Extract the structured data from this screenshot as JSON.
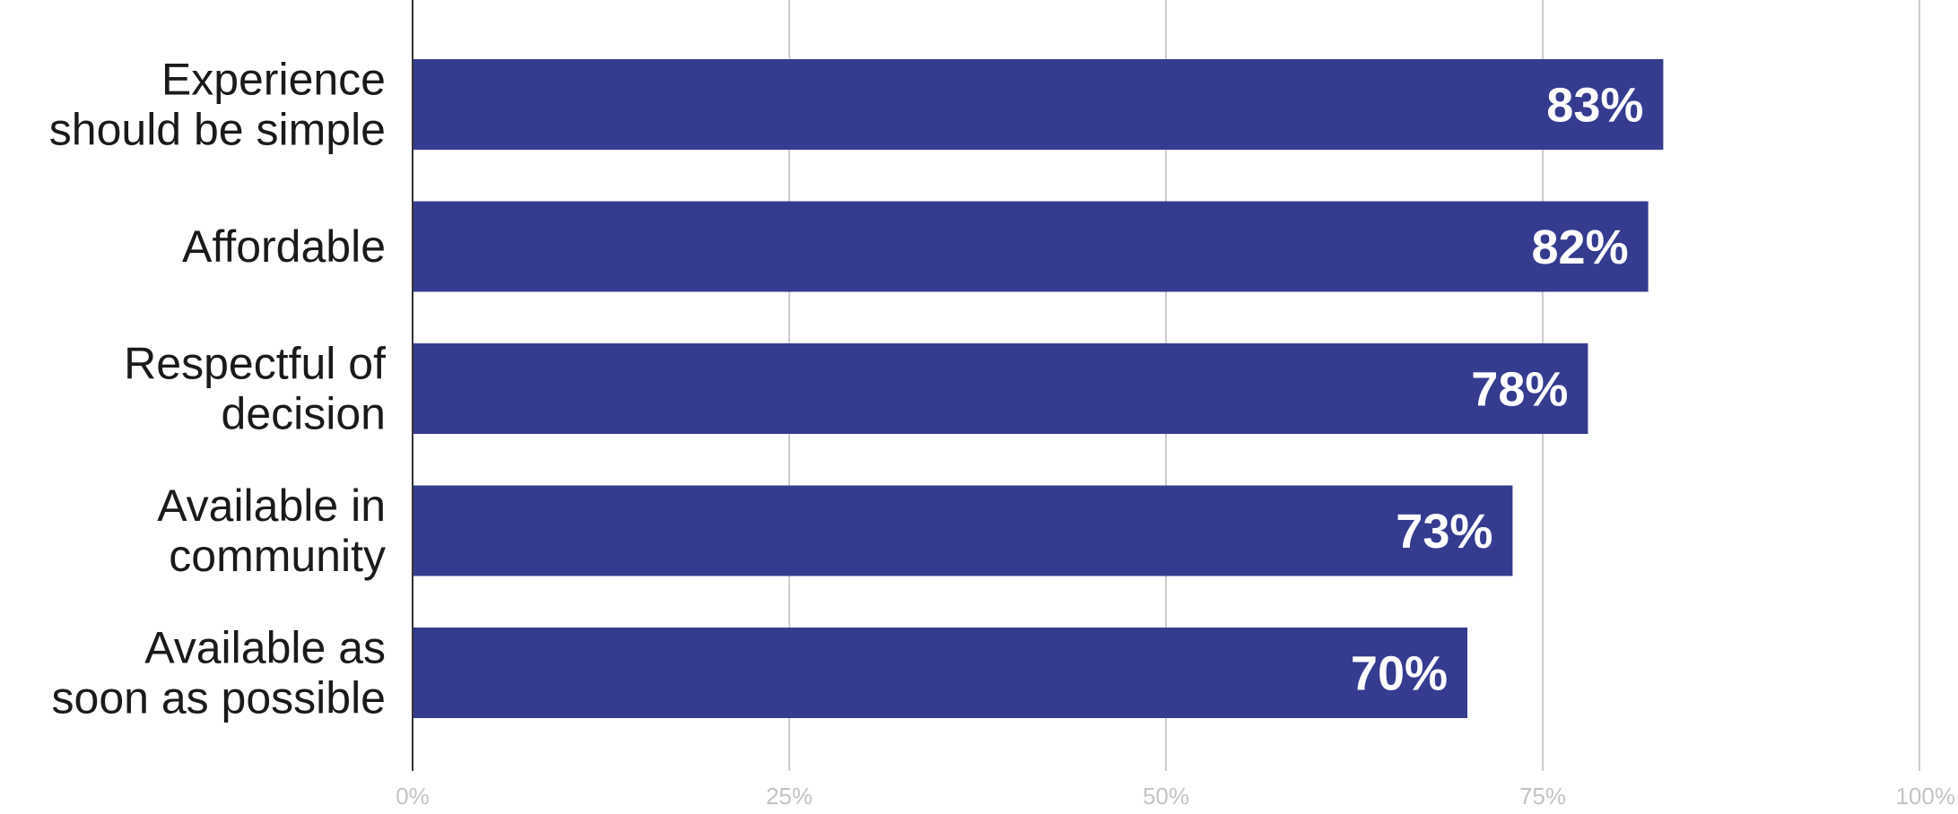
{
  "chart_data": {
    "type": "bar",
    "orientation": "horizontal",
    "title": "",
    "xlabel": "",
    "ylabel": "",
    "categories": [
      [
        "Experience",
        "should be simple"
      ],
      [
        "Affordable"
      ],
      [
        "Respectful of",
        "decision"
      ],
      [
        "Available in",
        "community"
      ],
      [
        "Available as",
        "soon as possible"
      ]
    ],
    "values": [
      83,
      82,
      78,
      73,
      70
    ],
    "value_labels": [
      "83%",
      "82%",
      "78%",
      "73%",
      "70%"
    ],
    "xlim": [
      0,
      100
    ],
    "x_ticks": [
      0,
      25,
      50,
      75,
      100
    ],
    "x_tick_labels": [
      "0%",
      "25%",
      "50%",
      "75%",
      "100%"
    ],
    "grid": true,
    "legend": "none",
    "colors": {
      "bar": "#353c8f",
      "grid": "#cccccc",
      "axis": "#333333",
      "value_text": "#ffffff",
      "category_text": "#1a1a1a",
      "tick_text": "#c4c4c4"
    }
  }
}
